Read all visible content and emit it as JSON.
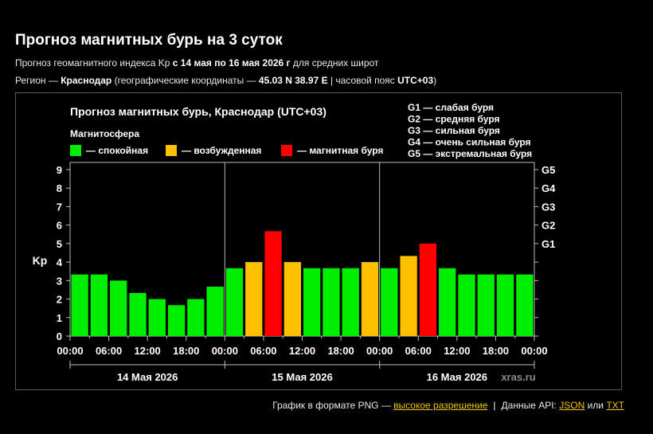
{
  "page": {
    "title": "Прогноз магнитных бурь на 3 суток",
    "line1": {
      "prefix": "Прогноз геомагнитного индекса Kp ",
      "range": "с 14 мая по 16 мая 2026 г",
      "suffix": " для средних широт"
    },
    "line2": {
      "prefix": "Регион — ",
      "region": "Краснодар",
      "mid": " (географические координаты — ",
      "coords": "45.03 N 38.97 E",
      "mid2": " | часовой пояс ",
      "tz": "UTC+03",
      "suffix": ")"
    }
  },
  "footer": {
    "png_prefix": "График в формате PNG — ",
    "png_link": "высокое разрешение",
    "separator": "|",
    "api_prefix": "Данные API: ",
    "json_link": "JSON",
    "or": " или ",
    "txt_link": "TXT"
  },
  "chart_data": {
    "type": "bar",
    "title": "Прогноз магнитных бурь, Краснодар (UTC+03)",
    "ylabel": "Kp",
    "ylim": [
      0,
      9
    ],
    "yticks": [
      0,
      1,
      2,
      3,
      4,
      5,
      6,
      7,
      8,
      9
    ],
    "storm_levels": [
      {
        "label": "G1",
        "value": 5
      },
      {
        "label": "G2",
        "value": 6
      },
      {
        "label": "G3",
        "value": 7
      },
      {
        "label": "G4",
        "value": 8
      },
      {
        "label": "G5",
        "value": 9
      }
    ],
    "storm_legend": [
      "G1 — слабая буря",
      "G2 — средняя буря",
      "G3 — сильная буря",
      "G4 — очень сильная буря",
      "G5 — экстремальная буря"
    ],
    "legend_title": "Магнитосфера",
    "legend": [
      {
        "label": "— спокойная",
        "color": "#00ee00"
      },
      {
        "label": "— возбужденная",
        "color": "#ffc000"
      },
      {
        "label": "— магнитная буря",
        "color": "#ff0000"
      }
    ],
    "days": [
      "14 Мая 2026",
      "15 Мая 2026",
      "16 Мая 2026"
    ],
    "hour_labels": [
      "00:00",
      "06:00",
      "12:00",
      "18:00"
    ],
    "end_label": "00:00",
    "values": [
      3.33,
      3.33,
      3.0,
      2.33,
      2.0,
      1.67,
      2.0,
      2.67,
      3.67,
      4.0,
      5.67,
      4.0,
      3.67,
      3.67,
      3.67,
      4.0,
      3.67,
      4.33,
      5.0,
      3.67,
      3.33,
      3.33,
      3.33,
      3.33
    ],
    "colors": [
      "#00ee00",
      "#00ee00",
      "#00ee00",
      "#00ee00",
      "#00ee00",
      "#00ee00",
      "#00ee00",
      "#00ee00",
      "#00ee00",
      "#ffc000",
      "#ff0000",
      "#ffc000",
      "#00ee00",
      "#00ee00",
      "#00ee00",
      "#ffc000",
      "#00ee00",
      "#ffc000",
      "#ff0000",
      "#00ee00",
      "#00ee00",
      "#00ee00",
      "#00ee00",
      "#00ee00"
    ],
    "watermark": "xras.ru"
  }
}
